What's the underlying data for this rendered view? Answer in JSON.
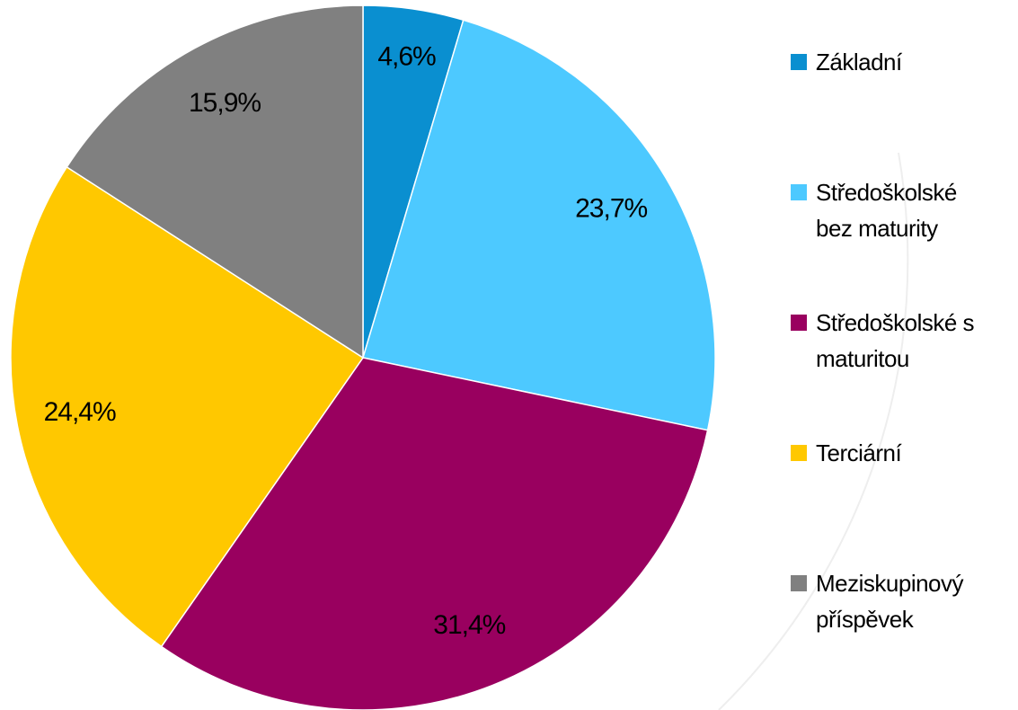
{
  "chart_data": {
    "type": "pie",
    "categories": [
      "Základní",
      "Středoškolské bez maturity",
      "Středoškolské s maturitou",
      "Terciární",
      "Meziskupinový příspěvek"
    ],
    "values": [
      4.6,
      23.7,
      31.4,
      24.4,
      15.9
    ],
    "value_labels": [
      "4,6%",
      "23,7%",
      "31,4%",
      "24,4%",
      "15,9%"
    ],
    "colors": [
      "#0a8fd0",
      "#4dc9ff",
      "#99005f",
      "#ffc800",
      "#808080"
    ],
    "legend": "right"
  }
}
